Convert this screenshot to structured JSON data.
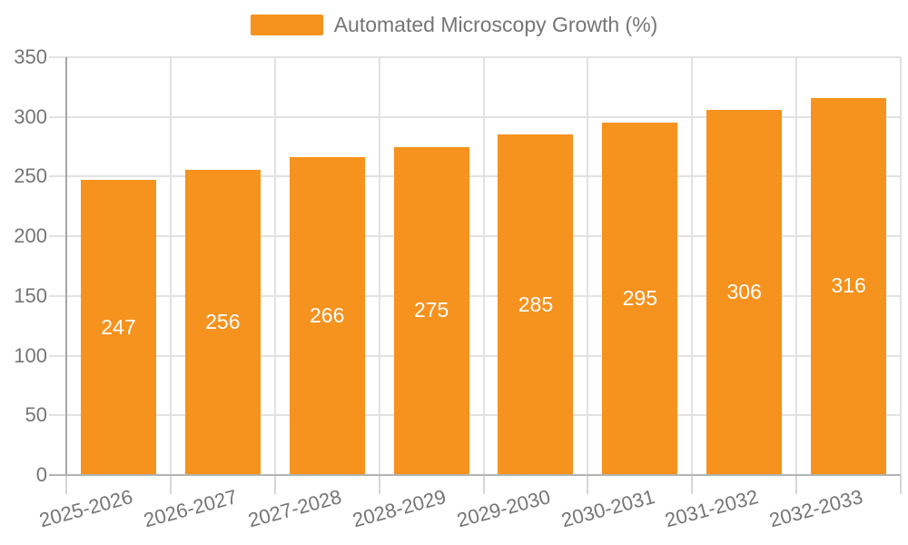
{
  "chart_data": {
    "type": "bar",
    "title": "Automated Microscopy Growth (%)",
    "legend": {
      "label": "Automated Microscopy Growth (%)",
      "position": "top-center"
    },
    "categories": [
      "2025-2026",
      "2026-2027",
      "2027-2028",
      "2028-2029",
      "2029-2030",
      "2030-2031",
      "2031-2032",
      "2032-2033"
    ],
    "values": [
      247,
      256,
      266,
      275,
      285,
      295,
      306,
      316
    ],
    "xlabel": "",
    "ylabel": "",
    "ylim": [
      0,
      350
    ],
    "yticks": [
      0,
      50,
      100,
      150,
      200,
      250,
      300,
      350
    ],
    "grid": true,
    "x_tick_label_rotation_deg": -15,
    "bar_value_labels_position": "center-inside",
    "colors": {
      "bar": "#f6921e",
      "bar_value_text": "#ffffff",
      "axis_text": "#757575",
      "gridline": "#e2e2e2",
      "y_axis_line": "#a6a6a6",
      "baseline": "#b3b3b3",
      "tick": "#d6d6d6"
    }
  }
}
